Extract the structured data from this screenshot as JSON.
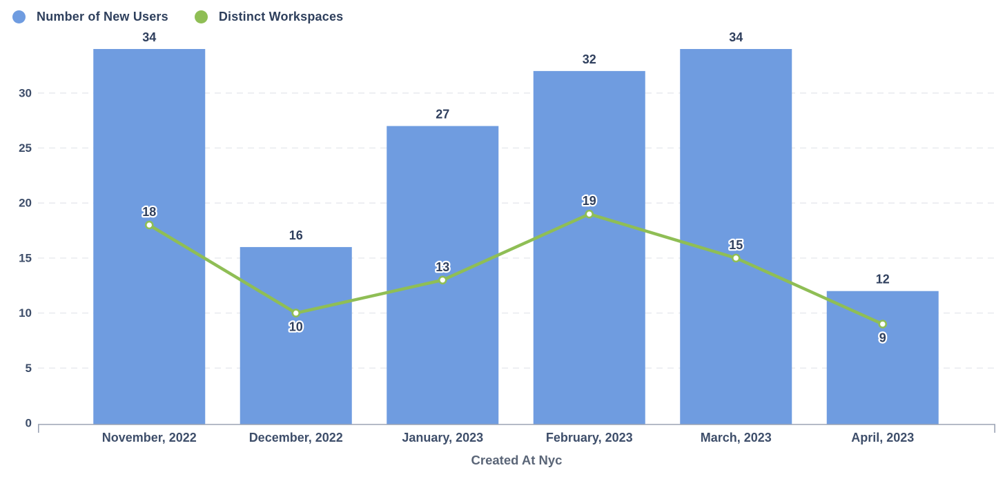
{
  "chart_data": {
    "type": "bar+line",
    "title": "",
    "xlabel": "Created At Nyc",
    "ylabel": "",
    "categories": [
      "November, 2022",
      "December, 2022",
      "January, 2023",
      "February, 2023",
      "March, 2023",
      "April, 2023"
    ],
    "series": [
      {
        "name": "Number of New Users",
        "type": "bar",
        "color": "#6F9CE0",
        "values": [
          34,
          16,
          27,
          32,
          34,
          12
        ]
      },
      {
        "name": "Distinct Workspaces",
        "type": "line",
        "color": "#8FBE55",
        "point_fill": "#FFFFFF",
        "values": [
          18,
          10,
          13,
          19,
          15,
          9
        ],
        "label_below": [
          false,
          true,
          false,
          false,
          false,
          true
        ]
      }
    ],
    "yticks": [
      0,
      5,
      10,
      15,
      20,
      25,
      30
    ],
    "ylim": [
      0,
      34
    ],
    "grid": "dashed-horizontal",
    "legend_position": "top-left",
    "colors": {
      "bar": "#6F9CE0",
      "line": "#8FBE55",
      "data_label": "#2F3F5D",
      "tick_label": "#3E4E6A",
      "axis_title": "#5A6577",
      "axis_line": "#9BA3B4",
      "gridline": "#E9EBEF",
      "label_halo": "#FFFFFF"
    }
  }
}
